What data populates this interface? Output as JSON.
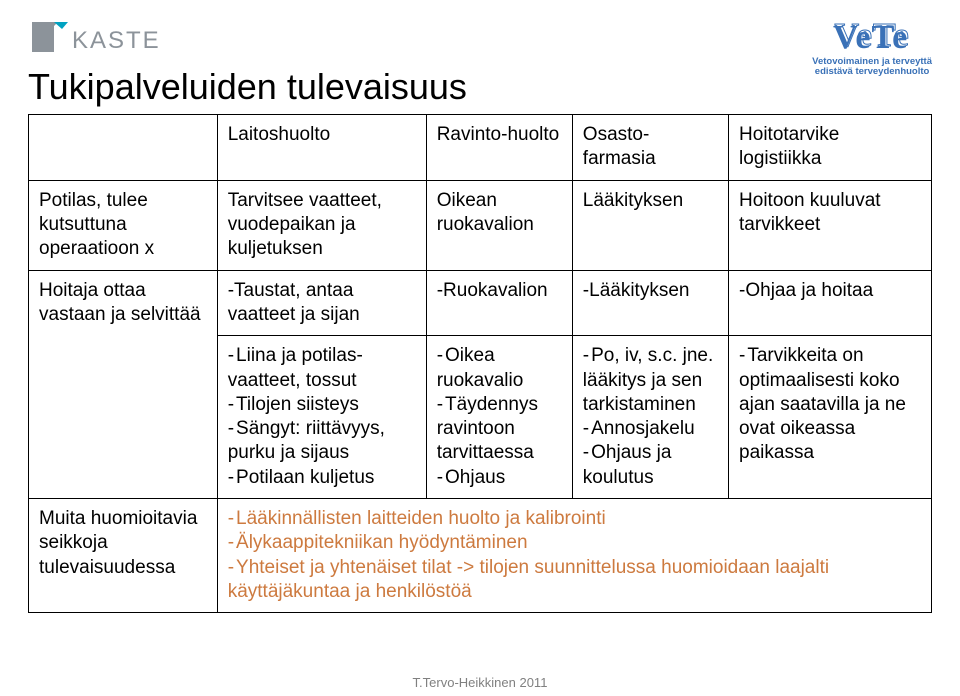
{
  "header": {
    "kaste_text": "KASTE",
    "vete_text": "VeTe",
    "vete_tag1": "Vetovoimainen ja terveyttä",
    "vete_tag2": "edistävä terveydenhuolto",
    "title": "Tukipalveluiden tulevaisuus"
  },
  "table": {
    "col_headers": [
      "",
      "Laitoshuolto",
      "Ravinto-huolto",
      "Osasto-farmasia",
      "Hoitotarvike logistiikka"
    ],
    "rows": [
      {
        "label": "Potilas, tulee kutsuttuna operaatioon x",
        "c1": "Tarvitsee vaatteet, vuodepaikan ja kuljetuksen",
        "c2": "Oikean ruokavalion",
        "c3": "Lääkityksen",
        "c4": "Hoitoon kuuluvat tarvikkeet"
      },
      {
        "label": "Hoitaja ottaa vastaan ja selvittää",
        "c1": "-Taustat, antaa vaatteet ja sijan",
        "c2": "-Ruokavalion",
        "c3": "-Lääkityksen",
        "c4": "-Ohjaa ja hoitaa"
      },
      {
        "label": "",
        "c1_items": [
          "Liina ja potilas-vaatteet, tossut",
          "Tilojen siisteys",
          "Sängyt: riittävyys, purku ja sijaus",
          "Potilaan kuljetus"
        ],
        "c2_items": [
          "Oikea ruokavalio",
          "Täydennys ravintoon tarvittaessa",
          "Ohjaus"
        ],
        "c3_items": [
          "Po, iv, s.c. jne. lääkitys ja sen tarkistaminen",
          "Annosjakelu",
          "Ohjaus ja koulutus"
        ],
        "c4_items": [
          "Tarvikkeita on optimaalisesti koko ajan saatavilla ja ne ovat oikeassa paikassa"
        ]
      },
      {
        "label": "Muita huomioitavia seikkoja tulevaisuudessa",
        "merged_items": [
          "Lääkinnällisten laitteiden huolto ja kalibrointi",
          "Älykaappitekniikan hyödyntäminen",
          "Yhteiset ja yhtenäiset tilat -> tilojen suunnittelussa huomioidaan laajalti käyttäjäkuntaa ja henkilöstöä"
        ]
      }
    ]
  },
  "colors": {
    "kaste_fill": "#8C939A",
    "kaste_accent": "#00A2C1",
    "vete_blue": "#3A71B7",
    "orange": "#CD7A3F",
    "footer_gray": "#808080",
    "border": "#000000"
  },
  "fonts": {
    "title_size": 36,
    "cell_size": 19,
    "footer_size": 13
  },
  "footer": "T.Tervo-Heikkinen 2011"
}
